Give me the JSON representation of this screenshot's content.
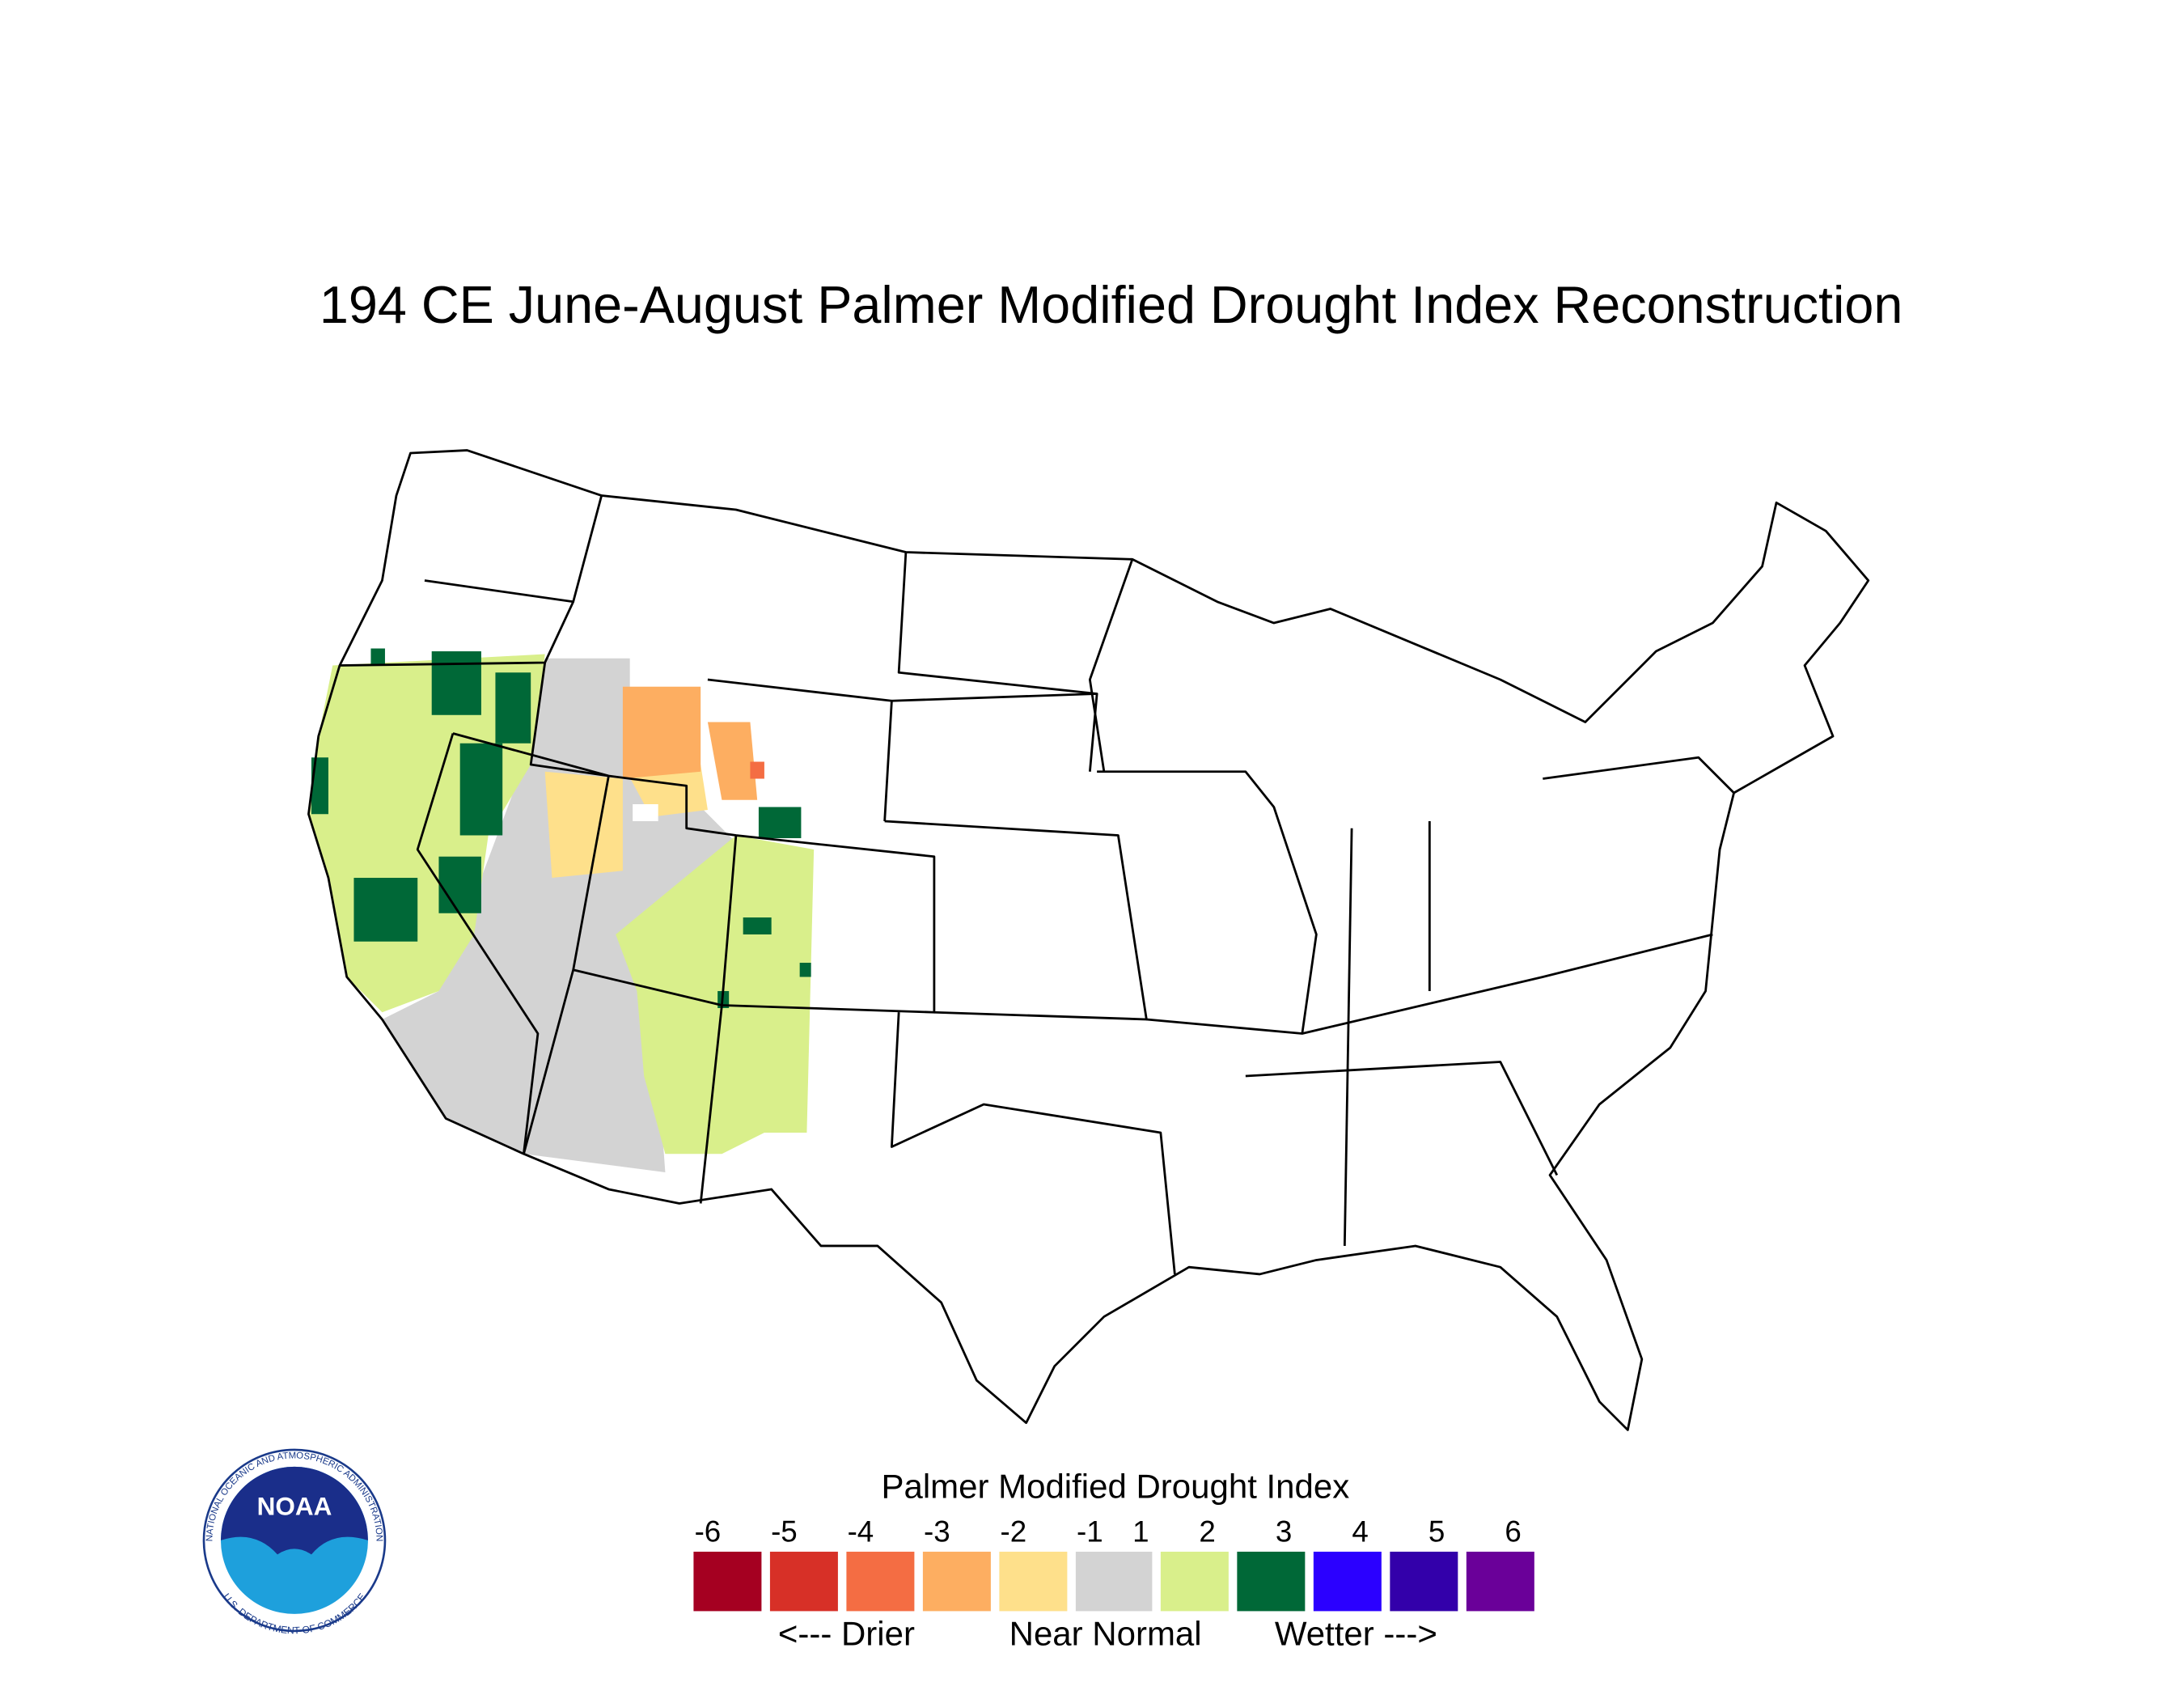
{
  "title": "194 CE  June-August  Palmer Modified Drought Index Reconstruction",
  "legend": {
    "title": "Palmer Modified Drought Index",
    "ticks": [
      -6,
      -5,
      -4,
      -3,
      -2,
      -1,
      1,
      2,
      3,
      4,
      5,
      6
    ],
    "colors": [
      "#a50021",
      "#d73027",
      "#f46d43",
      "#fdae61",
      "#fee08b",
      "#d3d3d3",
      "#d9ef8b",
      "#006837",
      "#2b00ff",
      "#3300aa",
      "#6a0099"
    ],
    "captions": [
      "<--- Drier",
      "Near Normal",
      "Wetter --->"
    ]
  },
  "logo": {
    "text": "NOAA",
    "ring_top": "NATIONAL OCEANIC AND ATMOSPHERIC ADMINISTRATION",
    "ring_bottom": "U.S. DEPARTMENT OF COMMERCE"
  }
}
